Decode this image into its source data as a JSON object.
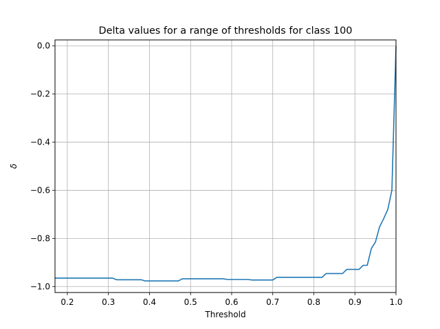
{
  "chart_data": {
    "type": "line",
    "title": "Delta values for a range of thresholds for class 100",
    "xlabel": "Threshold",
    "ylabel": "δ",
    "xlim": [
      0.17,
      1.0
    ],
    "ylim": [
      -1.025,
      0.025
    ],
    "xticks": [
      0.2,
      0.3,
      0.4,
      0.5,
      0.6,
      0.7,
      0.8,
      0.9,
      1.0
    ],
    "xtick_labels": [
      "0.2",
      "0.3",
      "0.4",
      "0.5",
      "0.6",
      "0.7",
      "0.8",
      "0.9",
      "1.0"
    ],
    "yticks": [
      0.0,
      -0.2,
      -0.4,
      -0.6,
      -0.8,
      -1.0
    ],
    "ytick_labels": [
      "0.0",
      "−0.2",
      "−0.4",
      "−0.6",
      "−0.8",
      "−1.0"
    ],
    "grid": true,
    "line_color": "#1f77b4",
    "series": [
      {
        "x": [
          0.17,
          0.31,
          0.32,
          0.38,
          0.39,
          0.47,
          0.48,
          0.58,
          0.59,
          0.64,
          0.65,
          0.7,
          0.71,
          0.82,
          0.83,
          0.87,
          0.88,
          0.91,
          0.92,
          0.93,
          0.94,
          0.95,
          0.96,
          0.97,
          0.98,
          0.99,
          1.0
        ],
        "y": [
          -0.965,
          -0.965,
          -0.972,
          -0.972,
          -0.977,
          -0.977,
          -0.968,
          -0.968,
          -0.971,
          -0.971,
          -0.973,
          -0.973,
          -0.962,
          -0.962,
          -0.946,
          -0.946,
          -0.929,
          -0.929,
          -0.912,
          -0.912,
          -0.842,
          -0.815,
          -0.752,
          -0.718,
          -0.68,
          -0.6,
          0.0
        ]
      }
    ]
  }
}
